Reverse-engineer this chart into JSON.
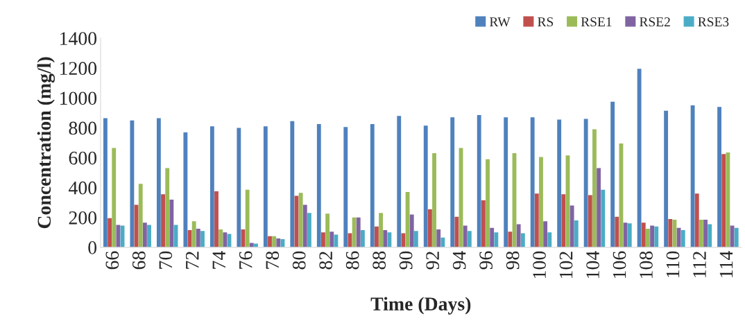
{
  "chart_data": {
    "type": "bar",
    "xlabel": "Time (Days)",
    "ylabel": "Concentration (mg/l)",
    "categories": [
      "66",
      "68",
      "70",
      "72",
      "74",
      "76",
      "78",
      "80",
      "82",
      "86",
      "88",
      "90",
      "92",
      "94",
      "96",
      "98",
      "100",
      "102",
      "104",
      "106",
      "108",
      "110",
      "112",
      "114"
    ],
    "series": [
      {
        "name": "RW",
        "color": "#4f81bd",
        "values": [
          865,
          850,
          865,
          770,
          810,
          800,
          810,
          845,
          825,
          805,
          825,
          880,
          815,
          870,
          885,
          870,
          870,
          855,
          860,
          975,
          1195,
          915,
          950,
          940
        ]
      },
      {
        "name": "RS",
        "color": "#c0504d",
        "values": [
          195,
          285,
          355,
          115,
          375,
          120,
          75,
          345,
          100,
          95,
          140,
          95,
          255,
          205,
          315,
          105,
          360,
          355,
          350,
          205,
          165,
          190,
          360,
          625
        ]
      },
      {
        "name": "RSE1",
        "color": "#9bbb59",
        "values": [
          665,
          425,
          530,
          175,
          120,
          385,
          75,
          365,
          225,
          200,
          230,
          370,
          630,
          665,
          590,
          630,
          605,
          615,
          790,
          695,
          125,
          185,
          185,
          635
        ]
      },
      {
        "name": "RSE2",
        "color": "#8064a2",
        "values": [
          150,
          165,
          320,
          125,
          100,
          30,
          60,
          285,
          105,
          200,
          115,
          220,
          120,
          145,
          130,
          155,
          175,
          280,
          530,
          165,
          145,
          130,
          185,
          145
        ]
      },
      {
        "name": "RSE3",
        "color": "#4bacc6",
        "values": [
          145,
          150,
          150,
          110,
          90,
          25,
          55,
          230,
          85,
          115,
          100,
          110,
          65,
          110,
          100,
          95,
          100,
          180,
          385,
          160,
          140,
          115,
          155,
          130
        ]
      }
    ],
    "ylim": [
      0,
      1400
    ],
    "yticks": [
      0,
      200,
      400,
      600,
      800,
      1000,
      1200,
      1400
    ],
    "grid": false,
    "legend": "top right"
  }
}
